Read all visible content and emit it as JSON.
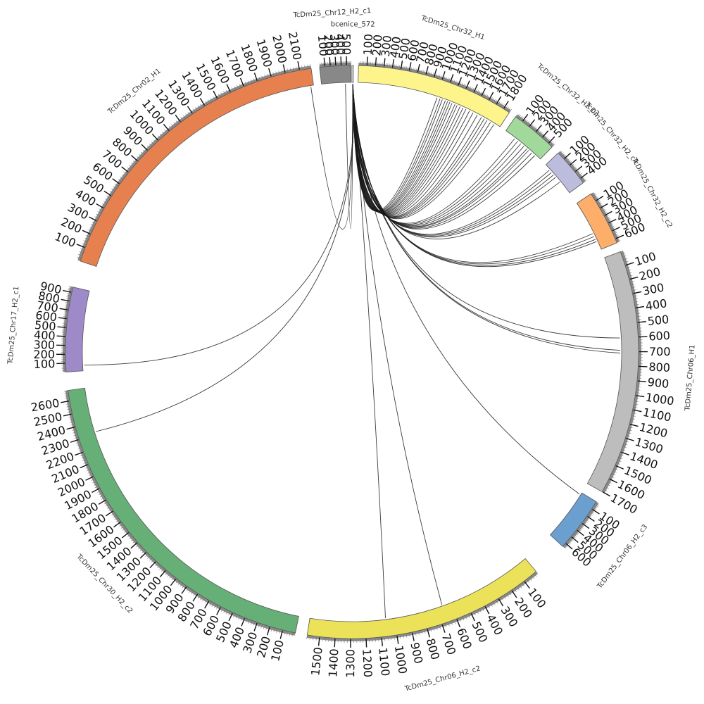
{
  "diagram": {
    "type": "circos-karyotype",
    "segments": [
      {
        "id": "cnc",
        "label": "bcenice_572",
        "length": 3,
        "color": "#ffffff",
        "show_ticks": false,
        "start": 0
      },
      {
        "id": "c32h1",
        "label": "TcDm25_Chr32_H1",
        "length": 1880,
        "color": "#fdf48c",
        "start": 0
      },
      {
        "id": "c32c3",
        "label": "TcDm25_Chr32_H2_c3",
        "length": 560,
        "color": "#a1d99b",
        "start": 1
      },
      {
        "id": "c32c4",
        "label": "TcDm25_Chr32_H2_c4",
        "length": 460,
        "color": "#bcbddc",
        "start": 1
      },
      {
        "id": "c32c2",
        "label": "TcDm25_Chr32_H2_c2",
        "length": 650,
        "color": "#fdae6b",
        "start": 1
      },
      {
        "id": "c06h1",
        "label": "TcDm25_Chr06_H1",
        "length": 1700,
        "color": "#bdbdbd",
        "start": 1
      },
      {
        "id": "c06c3",
        "label": "TcDm25_Chr06_H2_c3",
        "length": 650,
        "color": "#6a9fd0",
        "start": 1
      },
      {
        "id": "c06c2",
        "label": "TcDm25_Chr06_H2_c2",
        "length": 1580,
        "color": "#ece25a",
        "start": 1
      },
      {
        "id": "c30c2",
        "label": "TcDm25_Chr30_H2_c2",
        "length": 2680,
        "color": "#66b077",
        "start": 1
      },
      {
        "id": "c17c1",
        "label": "TcDm25_Chr17_H2_c1",
        "length": 960,
        "color": "#9e8ac8",
        "start": 1
      },
      {
        "id": "c02h1",
        "label": "TcDm25_Chr02_H1",
        "length": 2180,
        "color": "#e6804f",
        "start": 1
      },
      {
        "id": "c12c1",
        "label": "TcDm25_Chr12_H2_c1",
        "length": 580,
        "color": "#888888",
        "start": 1
      }
    ],
    "links": [
      {
        "s": "cnc",
        "t": "c32h1",
        "p": 1080
      },
      {
        "s": "cnc",
        "t": "c32h1",
        "p": 1050
      },
      {
        "s": "cnc",
        "t": "c32h1",
        "p": 1120
      },
      {
        "s": "cnc",
        "t": "c32h1",
        "p": 1150
      },
      {
        "s": "cnc",
        "t": "c32h1",
        "p": 1180
      },
      {
        "s": "cnc",
        "t": "c32h1",
        "p": 1210
      },
      {
        "s": "cnc",
        "t": "c32h1",
        "p": 1250
      },
      {
        "s": "cnc",
        "t": "c32h1",
        "p": 1280
      },
      {
        "s": "cnc",
        "t": "c32h1",
        "p": 1320
      },
      {
        "s": "cnc",
        "t": "c32h1",
        "p": 1360
      },
      {
        "s": "cnc",
        "t": "c32h1",
        "p": 1400
      },
      {
        "s": "cnc",
        "t": "c32h1",
        "p": 1450
      },
      {
        "s": "cnc",
        "t": "c32h1",
        "p": 1500
      },
      {
        "s": "cnc",
        "t": "c32h1",
        "p": 1560
      },
      {
        "s": "cnc",
        "t": "c32h1",
        "p": 1620
      },
      {
        "s": "cnc",
        "t": "c32h1",
        "p": 1660
      },
      {
        "s": "cnc",
        "t": "c32h1",
        "p": 1700
      },
      {
        "s": "cnc",
        "t": "c32h1",
        "p": 1750
      },
      {
        "s": "cnc",
        "t": "c32h1",
        "p": 1800
      },
      {
        "s": "cnc",
        "t": "c32h1",
        "p": 1010
      },
      {
        "s": "cnc",
        "t": "c32c3",
        "p": 150
      },
      {
        "s": "cnc",
        "t": "c32c3",
        "p": 200
      },
      {
        "s": "cnc",
        "t": "c32c3",
        "p": 250
      },
      {
        "s": "cnc",
        "t": "c32c3",
        "p": 300
      },
      {
        "s": "cnc",
        "t": "c32c3",
        "p": 350
      },
      {
        "s": "cnc",
        "t": "c32c3",
        "p": 380
      },
      {
        "s": "cnc",
        "t": "c32c3",
        "p": 430
      },
      {
        "s": "cnc",
        "t": "c32c3",
        "p": 480
      },
      {
        "s": "cnc",
        "t": "c32c4",
        "p": 80
      },
      {
        "s": "cnc",
        "t": "c32c4",
        "p": 120
      },
      {
        "s": "cnc",
        "t": "c32c4",
        "p": 160
      },
      {
        "s": "cnc",
        "t": "c32c4",
        "p": 200
      },
      {
        "s": "cnc",
        "t": "c32c4",
        "p": 280
      },
      {
        "s": "cnc",
        "t": "c32c2",
        "p": 430
      },
      {
        "s": "cnc",
        "t": "c32c2",
        "p": 470
      },
      {
        "s": "cnc",
        "t": "c32c2",
        "p": 510
      },
      {
        "s": "cnc",
        "t": "c32c2",
        "p": 540
      },
      {
        "s": "cnc",
        "t": "c06h1",
        "p": 600
      },
      {
        "s": "cnc",
        "t": "c06h1",
        "p": 690
      },
      {
        "s": "cnc",
        "t": "c06h1",
        "p": 710
      },
      {
        "s": "cnc",
        "t": "c06c3",
        "p": 30
      },
      {
        "s": "cnc",
        "t": "c06c2",
        "p": 660
      },
      {
        "s": "cnc",
        "t": "c06c2",
        "p": 1060
      },
      {
        "s": "cnc",
        "t": "c30c2",
        "p": 2320
      },
      {
        "s": "cnc",
        "t": "c17c1",
        "p": 70
      },
      {
        "s": "cnc",
        "t": "c02h1",
        "p": 2160
      },
      {
        "s": "cnc",
        "t": "c12c1",
        "p": 470
      }
    ]
  }
}
